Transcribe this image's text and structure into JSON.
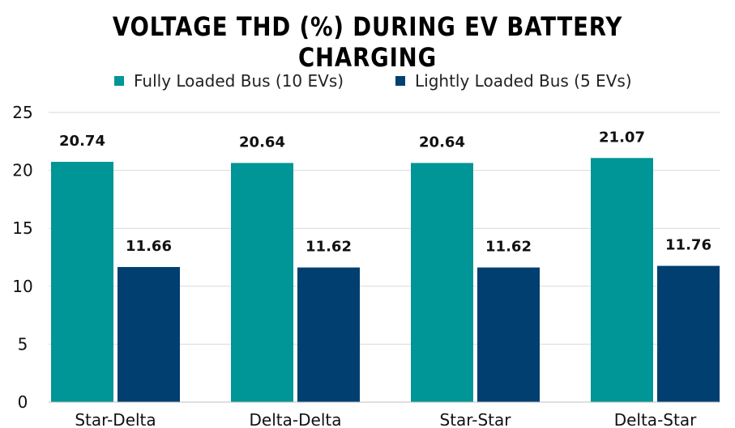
{
  "chart_data": {
    "type": "bar",
    "title": "VOLTAGE THD (%) DURING EV BATTERY CHARGING",
    "categories": [
      "Star-Delta",
      "Delta-Delta",
      "Star-Star",
      "Delta-Star"
    ],
    "series": [
      {
        "name": "Fully Loaded Bus (10 EVs)",
        "values": [
          20.74,
          20.64,
          20.64,
          21.07
        ],
        "labels": [
          "20.74",
          "20.64",
          "20.64",
          "21.07"
        ],
        "color": "#009596"
      },
      {
        "name": "Lightly Loaded Bus (5 EVs)",
        "values": [
          11.66,
          11.62,
          11.62,
          11.76
        ],
        "labels": [
          "11.66",
          "11.62",
          "11.62",
          "11.76"
        ],
        "color": "#003f6f"
      }
    ],
    "ylim": [
      0,
      25
    ],
    "yticks": [
      0,
      5,
      10,
      15,
      20,
      25
    ],
    "grid": true,
    "legend_position": "top",
    "xlabel": "",
    "ylabel": ""
  }
}
